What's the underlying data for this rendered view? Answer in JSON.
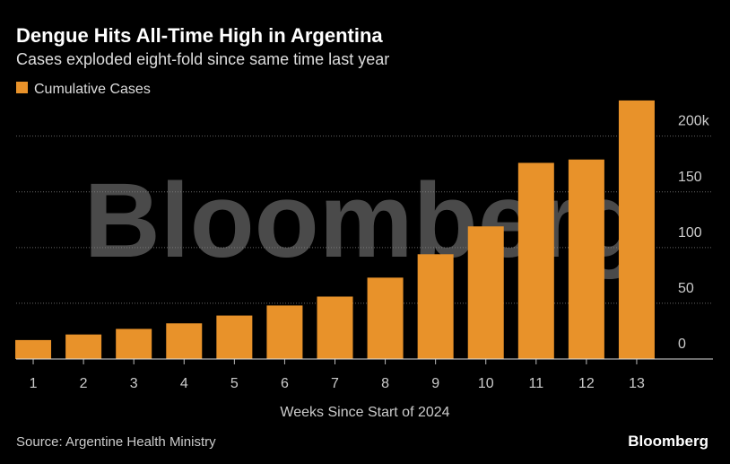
{
  "chart_data": {
    "type": "bar",
    "title": "Dengue Hits All-Time High in Argentina",
    "subtitle": "Cases exploded eight-fold since same time last year",
    "x_label": "Weeks Since Start of 2024",
    "source": "Source: Argentine Health Ministry",
    "logo": "Bloomberg",
    "watermark": "Bloomberg",
    "categories": [
      "1",
      "2",
      "3",
      "4",
      "5",
      "6",
      "7",
      "8",
      "9",
      "10",
      "11",
      "12",
      "13"
    ],
    "series": [
      {
        "name": "Cumulative Cases",
        "color": "#e8922a",
        "values": [
          17,
          22,
          27,
          32,
          39,
          48,
          56,
          73,
          94,
          119,
          176,
          179,
          232
        ]
      }
    ],
    "ylim": [
      0,
      240
    ],
    "yticks": [
      0,
      50,
      100,
      150,
      {
        "value": 200,
        "label": "200k"
      }
    ],
    "grid": true,
    "legend": "top-left"
  }
}
